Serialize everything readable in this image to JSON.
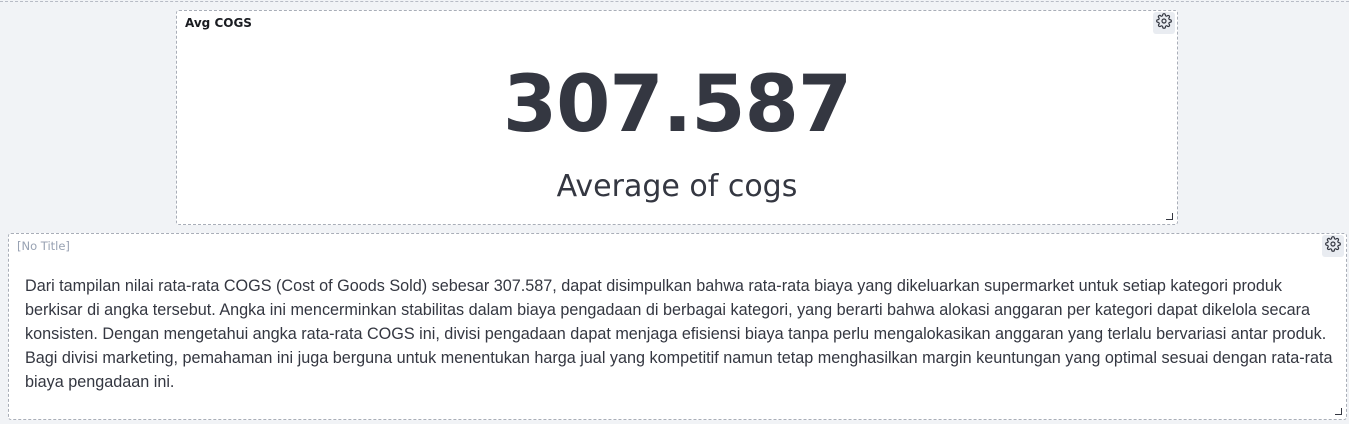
{
  "metric_panel": {
    "title": "Avg COGS",
    "value": "307.587",
    "label": "Average of cogs",
    "gear_icon": "gear-icon"
  },
  "text_panel": {
    "title": "[No Title]",
    "body": "Dari tampilan nilai rata-rata COGS (Cost of Goods Sold) sebesar 307.587, dapat disimpulkan bahwa rata-rata biaya yang dikeluarkan supermarket untuk setiap kategori produk berkisar di angka tersebut. Angka ini mencerminkan stabilitas dalam biaya pengadaan di berbagai kategori, yang berarti bahwa alokasi anggaran per kategori dapat dikelola secara konsisten. Dengan mengetahui angka rata-rata COGS ini, divisi pengadaan dapat menjaga efisiensi biaya tanpa perlu mengalokasikan anggaran yang terlalu bervariasi antar produk. Bagi divisi marketing, pemahaman ini juga berguna untuk menentukan harga jual yang kompetitif namun tetap menghasilkan margin keuntungan yang optimal sesuai dengan rata-rata biaya pengadaan ini.",
    "gear_icon": "gear-icon"
  },
  "colors": {
    "background": "#f1f3f6",
    "panel": "#ffffff",
    "text": "#343741",
    "muted": "#98a2b3"
  }
}
